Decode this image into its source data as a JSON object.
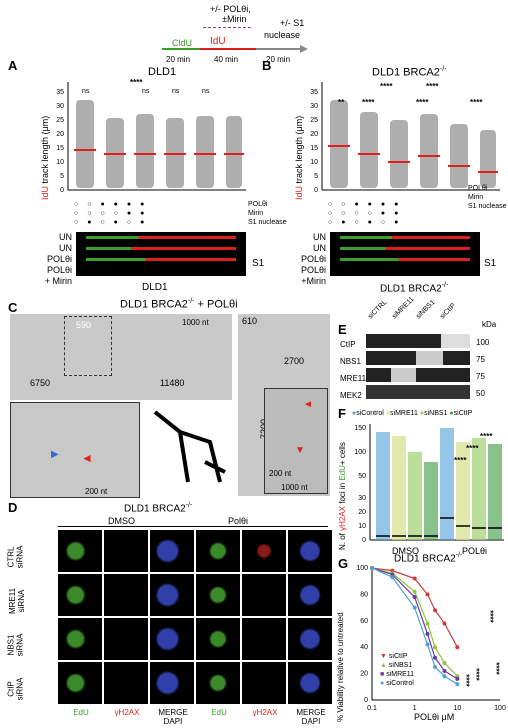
{
  "schema": {
    "cldu": "CldU",
    "idu": "IdU",
    "top": "+/- POLθi,",
    "mirin": "±Mirin",
    "s1": "+/- S1",
    "nuclease": "nuclease",
    "t1": "20 min",
    "t2": "40 min",
    "t3": "20 min"
  },
  "panelA": {
    "label": "A",
    "title": "DLD1",
    "ylabel_red": "IdU",
    "ylabel_rest": " track length (μm)",
    "yticks": [
      "0",
      "5",
      "10",
      "15",
      "20",
      "25",
      "30",
      "35"
    ],
    "row_labels": [
      "POLθi",
      "Mirin",
      "S1 nuclease"
    ],
    "sig": [
      "ns",
      "****",
      "ns",
      "ns",
      "ns"
    ],
    "fiber_labels": [
      "UN",
      "UN",
      "POLθi",
      "POLθi",
      "+ Mirin"
    ],
    "s1": "S1",
    "footer": "DLD1"
  },
  "panelB": {
    "label": "B",
    "title": "DLD1 BRCA2",
    "sup": "-/-",
    "ylabel_red": "IdU",
    "ylabel_rest": " track length (μm)",
    "yticks": [
      "0",
      "5",
      "10",
      "15",
      "20",
      "25",
      "30",
      "35"
    ],
    "row_labels": [
      "POLθi",
      "Mirin",
      "S1 nuclease"
    ],
    "sig": [
      "**",
      "****",
      "****",
      "****",
      "****",
      "****"
    ],
    "fiber_labels": [
      "UN",
      "UN",
      "POLθi",
      "POLθi",
      "+Mirin"
    ],
    "s1": "S1",
    "footer": "DLD1 BRCA2",
    "footer_sup": "-/-"
  },
  "panelC": {
    "label": "C",
    "title": "DLD1 BRCA2",
    "sup": "-/-",
    "title_rest": " + POLθi",
    "n590": "590",
    "n6750": "6750",
    "n11480": "11480",
    "n1000a": "1000 nt",
    "n610": "610",
    "n2700": "2700",
    "n7200": "7200",
    "n200a": "200 nt",
    "n200b": "200 nt",
    "n1000b": "1000 nt"
  },
  "panelD": {
    "label": "D",
    "title": "DLD1 BRCA2",
    "sup": "-/-",
    "dmso": "DMSO",
    "pol": "Polθi",
    "rows": [
      "CTRL\nsiRNA",
      "MRE11\nsiRNA",
      "NBS1\nsiRNA",
      "CtIP\nsiRNA"
    ],
    "cols": [
      "EdU",
      "γH2AX",
      "MERGE\nDAPI",
      "EdU",
      "γH2AX",
      "MERGE\nDAPI"
    ]
  },
  "panelE": {
    "label": "E",
    "lanes": [
      "siCTRL",
      "siMRE11",
      "siNBS1",
      "siCtIP"
    ],
    "kda": "kDa",
    "bands": [
      "CtIP",
      "NBS1",
      "MRE11",
      "MEK2"
    ],
    "markers": [
      "100",
      "75",
      "75",
      "50"
    ]
  },
  "panelF": {
    "label": "F",
    "legend": [
      "siControl",
      "siMRE11",
      "siNBS1",
      "siCtIP"
    ],
    "ylabel_pre": "N. of ",
    "ylabel_red": "γH2AX",
    "ylabel_mid": " foci in ",
    "ylabel_green": "EdU",
    "ylabel_post": "+ cells",
    "yticks": [
      "0",
      "10",
      "20",
      "30",
      "50",
      "100",
      "150"
    ],
    "groups": [
      "DMSO",
      "POLθi"
    ],
    "sig": [
      "****",
      "****",
      "****"
    ]
  },
  "panelG": {
    "label": "G",
    "title": "DLD1 BRCA2",
    "sup": "-/-",
    "ylabel": "% Viability relative to untreated",
    "xlabel": "POLθi  μM",
    "yticks": [
      "0",
      "20",
      "40",
      "60",
      "80",
      "100"
    ],
    "xticks": [
      "0.1",
      "1",
      "10",
      "100"
    ],
    "legend": [
      "siCtIP",
      "siNBS1",
      "siMRE11",
      "siControl"
    ],
    "sig": [
      "****",
      "****",
      "****",
      "****"
    ],
    "colors": [
      "#d03a3a",
      "#8cc63f",
      "#6b3aa0",
      "#4fa0d8"
    ]
  },
  "chart_data": [
    {
      "type": "line",
      "title": "DLD1 BRCA2-/-",
      "xlabel": "POLθi μM",
      "ylabel": "% Viability relative to untreated",
      "xscale": "log",
      "xlim": [
        0.1,
        100
      ],
      "ylim": [
        0,
        100
      ],
      "x": [
        0.1,
        0.3,
        1,
        2,
        3,
        5,
        10
      ],
      "series": [
        {
          "name": "siCtIP",
          "values": [
            100,
            98,
            92,
            80,
            68,
            58,
            40
          ]
        },
        {
          "name": "siNBS1",
          "values": [
            100,
            96,
            82,
            58,
            40,
            28,
            18
          ]
        },
        {
          "name": "siMRE11",
          "values": [
            100,
            95,
            78,
            50,
            32,
            22,
            16
          ]
        },
        {
          "name": "siControl",
          "values": [
            100,
            93,
            70,
            42,
            25,
            18,
            12
          ]
        }
      ]
    }
  ]
}
